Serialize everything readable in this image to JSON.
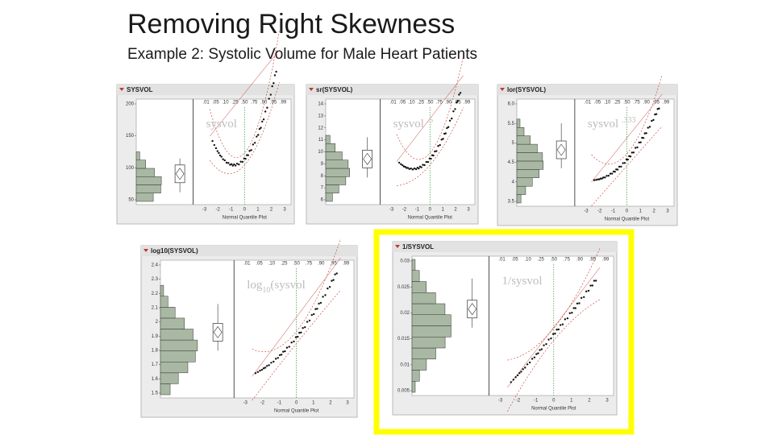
{
  "title": "Removing Right Skewness",
  "subtitle": "Example 2:  Systolic Volume for Male Heart Patients",
  "panels": [
    {
      "header": "SYSVOL",
      "y_ticks": [
        "200",
        "150",
        "100",
        "50"
      ],
      "prob_ticks": [
        ".01",
        ".05",
        ".10",
        ".25",
        ".50",
        ".75",
        ".90",
        ".95",
        ".99"
      ],
      "x_ticks": [
        "-3",
        "-2",
        "-1",
        "0",
        "1",
        "2",
        "3"
      ],
      "x_axis_label": "Normal Quantile Plot",
      "overlay": [
        {
          "text": "sysvol",
          "shift": "none"
        }
      ]
    },
    {
      "header": "sr(SYSVOL)",
      "y_ticks": [
        "14",
        "13",
        "12",
        "11",
        "10",
        "9",
        "8",
        "7",
        "6"
      ],
      "prob_ticks": [
        ".01",
        ".05",
        ".10",
        ".25",
        ".50",
        ".75",
        ".90",
        ".95",
        ".99"
      ],
      "x_ticks": [
        "-3",
        "-2",
        "-1",
        "0",
        "1",
        "2",
        "3"
      ],
      "x_axis_label": "Normal Quantile Plot",
      "overlay": [
        {
          "text": "sysvol ",
          "shift": "none"
        },
        {
          "text": ".5",
          "shift": "sup"
        }
      ]
    },
    {
      "header": "lor(SYSVOL)",
      "y_ticks": [
        "6.0",
        "5.5",
        "5",
        "4.5",
        "4",
        "3.5"
      ],
      "prob_ticks": [
        ".01",
        ".05",
        ".10",
        ".25",
        ".50",
        ".75",
        ".90",
        ".95",
        ".99"
      ],
      "x_ticks": [
        "-3",
        "-2",
        "-1",
        "0",
        "1",
        "2",
        "3"
      ],
      "x_axis_label": "Normal Quantile Plot",
      "overlay": [
        {
          "text": "sysvol ",
          "shift": "none"
        },
        {
          "text": ".333",
          "shift": "sup"
        }
      ]
    },
    {
      "header": "log10(SYSVOL)",
      "y_ticks": [
        "2.4",
        "2.3",
        "2.2",
        "2.1",
        "2",
        "1.9",
        "1.8",
        "1.7",
        "1.6",
        "1.5"
      ],
      "prob_ticks": [
        ".01",
        ".05",
        ".10",
        ".25",
        ".50",
        ".75",
        ".90",
        ".95",
        ".99"
      ],
      "x_ticks": [
        "-3",
        "-2",
        "-1",
        "0",
        "1",
        "2",
        "3"
      ],
      "x_axis_label": "Normal Quantile Plot",
      "overlay": [
        {
          "text": "log",
          "shift": "none"
        },
        {
          "text": "10",
          "shift": "sub"
        },
        {
          "text": "(sysvol",
          "shift": "none"
        }
      ]
    },
    {
      "header": "1/SYSVOL",
      "y_ticks": [
        "0.03",
        "0.025",
        "0.02",
        "0.015",
        "0.01",
        "0.005"
      ],
      "prob_ticks": [
        ".01",
        ".05",
        ".10",
        ".25",
        ".50",
        ".75",
        ".90",
        ".95",
        ".99"
      ],
      "x_ticks": [
        "-3",
        "-2",
        "-1",
        "0",
        "1",
        "2",
        "3"
      ],
      "x_axis_label": "Normal Quantile Plot",
      "overlay": [
        {
          "text": "1/sysvol",
          "shift": "none"
        }
      ]
    }
  ]
}
